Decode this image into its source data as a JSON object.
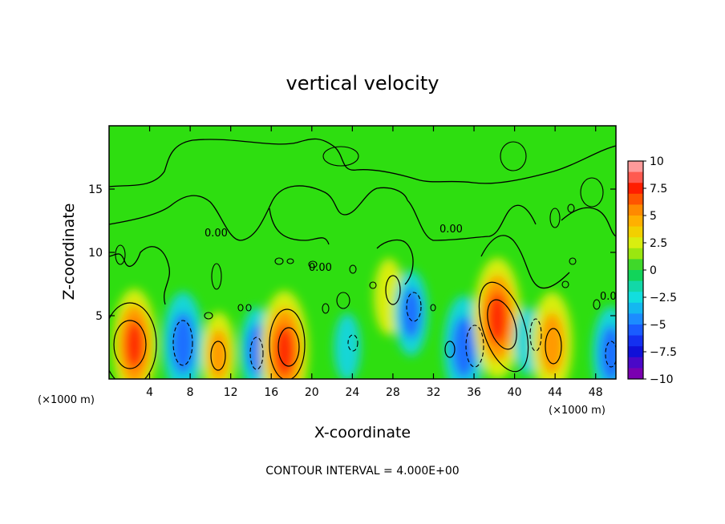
{
  "chart_data": {
    "type": "heatmap",
    "title": "vertical velocity",
    "xlabel": "X-coordinate",
    "ylabel": "Z-coordinate",
    "x_unit_label": "(×1000 m)",
    "x_unit_label_right": "(×1000 m)",
    "xlim": [
      0,
      50
    ],
    "ylim": [
      0,
      20
    ],
    "x_ticks": [
      4,
      8,
      12,
      16,
      20,
      24,
      28,
      32,
      36,
      40,
      44,
      48
    ],
    "x_tick_labels": [
      "4",
      "8",
      "12",
      "16",
      "20",
      "24",
      "28",
      "32",
      "36",
      "40",
      "44",
      "48"
    ],
    "y_ticks": [
      5,
      10,
      15
    ],
    "y_tick_labels": [
      "5",
      "10",
      "15"
    ],
    "colorbar": {
      "min": -10,
      "max": 10,
      "ticks": [
        10,
        7.5,
        5,
        2.5,
        0,
        -2.5,
        -5,
        -7.5,
        -10
      ],
      "tick_labels": [
        "10",
        "7.5",
        "5",
        "2.5",
        "0",
        "−2.5",
        "−5",
        "−7.5",
        "−10"
      ]
    },
    "contour_interval_text": "CONTOUR INTERVAL = 4.000E+00",
    "contour_labels": [
      "0.00",
      "0.00",
      "0.00",
      "0.0"
    ],
    "features": [
      {
        "x": 2.5,
        "z": 2.7,
        "w": 8
      },
      {
        "x": 7.3,
        "z": 2.8,
        "w": -7
      },
      {
        "x": 10.8,
        "z": 1.9,
        "w": 5
      },
      {
        "x": 14.6,
        "z": 2.3,
        "w": -5
      },
      {
        "x": 17.3,
        "z": 2.2,
        "w": 9
      },
      {
        "x": 23.5,
        "z": 2.5,
        "w": -3
      },
      {
        "x": 27.6,
        "z": 6.5,
        "w": 4
      },
      {
        "x": 29.8,
        "z": 5.2,
        "w": -5
      },
      {
        "x": 35.0,
        "z": 2.5,
        "w": -7
      },
      {
        "x": 38.3,
        "z": 4.8,
        "w": 9
      },
      {
        "x": 41.3,
        "z": 3.0,
        "w": -3
      },
      {
        "x": 43.7,
        "z": 2.8,
        "w": 7
      },
      {
        "x": 49.5,
        "z": 2.0,
        "w": -6
      }
    ]
  }
}
